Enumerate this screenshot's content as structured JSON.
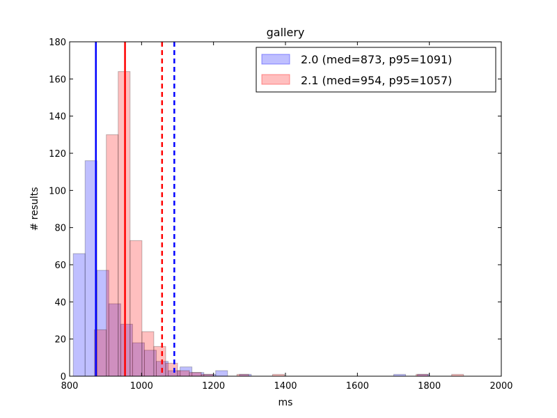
{
  "chart_data": {
    "type": "histogram",
    "title": "gallery",
    "xlabel": "ms",
    "ylabel": "# results",
    "xlim": [
      800,
      2000
    ],
    "ylim": [
      0,
      180
    ],
    "xticks": [
      800,
      1000,
      1200,
      1400,
      1600,
      1800,
      2000
    ],
    "yticks": [
      0,
      20,
      40,
      60,
      80,
      100,
      120,
      140,
      160,
      180
    ],
    "legend_position": "top-right",
    "series": [
      {
        "name": "2.0 (med=873, p95=1091)",
        "color": "#0000ff",
        "bins": [
          {
            "x0": 810,
            "x1": 843,
            "value": 66
          },
          {
            "x0": 843,
            "x1": 876,
            "value": 116
          },
          {
            "x0": 876,
            "x1": 909,
            "value": 57
          },
          {
            "x0": 909,
            "x1": 942,
            "value": 39
          },
          {
            "x0": 942,
            "x1": 975,
            "value": 28
          },
          {
            "x0": 975,
            "x1": 1008,
            "value": 18
          },
          {
            "x0": 1008,
            "x1": 1041,
            "value": 14
          },
          {
            "x0": 1041,
            "x1": 1074,
            "value": 8
          },
          {
            "x0": 1074,
            "x1": 1107,
            "value": 3
          },
          {
            "x0": 1107,
            "x1": 1140,
            "value": 5
          },
          {
            "x0": 1140,
            "x1": 1173,
            "value": 2
          },
          {
            "x0": 1173,
            "x1": 1206,
            "value": 1
          },
          {
            "x0": 1206,
            "x1": 1239,
            "value": 3
          },
          {
            "x0": 1272,
            "x1": 1305,
            "value": 1
          },
          {
            "x0": 1701,
            "x1": 1734,
            "value": 1
          },
          {
            "x0": 1767,
            "x1": 1800,
            "value": 1
          }
        ],
        "median": 873,
        "p95": 1091
      },
      {
        "name": "2.1 (med=954, p95=1057)",
        "color": "#ff0000",
        "bins": [
          {
            "x0": 869,
            "x1": 902,
            "value": 25
          },
          {
            "x0": 902,
            "x1": 935,
            "value": 130
          },
          {
            "x0": 935,
            "x1": 968,
            "value": 164
          },
          {
            "x0": 968,
            "x1": 1001,
            "value": 73
          },
          {
            "x0": 1001,
            "x1": 1034,
            "value": 24
          },
          {
            "x0": 1034,
            "x1": 1067,
            "value": 16
          },
          {
            "x0": 1067,
            "x1": 1100,
            "value": 7
          },
          {
            "x0": 1100,
            "x1": 1133,
            "value": 3
          },
          {
            "x0": 1133,
            "x1": 1166,
            "value": 2
          },
          {
            "x0": 1166,
            "x1": 1199,
            "value": 1
          },
          {
            "x0": 1265,
            "x1": 1298,
            "value": 1
          },
          {
            "x0": 1364,
            "x1": 1397,
            "value": 1
          },
          {
            "x0": 1763,
            "x1": 1796,
            "value": 1
          },
          {
            "x0": 1862,
            "x1": 1895,
            "value": 1
          }
        ],
        "median": 954,
        "p95": 1057
      }
    ]
  }
}
